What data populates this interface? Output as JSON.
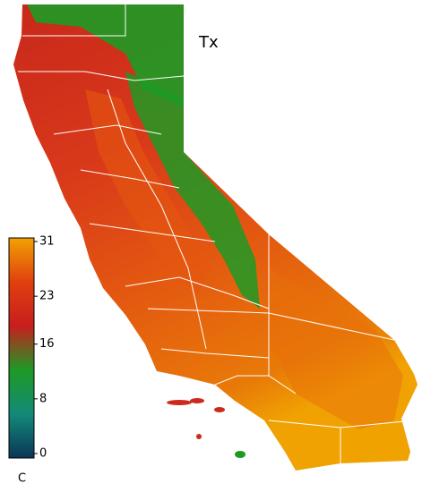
{
  "map": {
    "title": "Tx",
    "colorbar": {
      "unit": "C",
      "range": [
        0,
        31
      ],
      "ticks": [
        0,
        8,
        16,
        23,
        31
      ],
      "colors": [
        "#0b3557",
        "#138a78",
        "#1d9a25",
        "#c81e1e",
        "#e0400f",
        "#f0a202"
      ]
    }
  }
}
